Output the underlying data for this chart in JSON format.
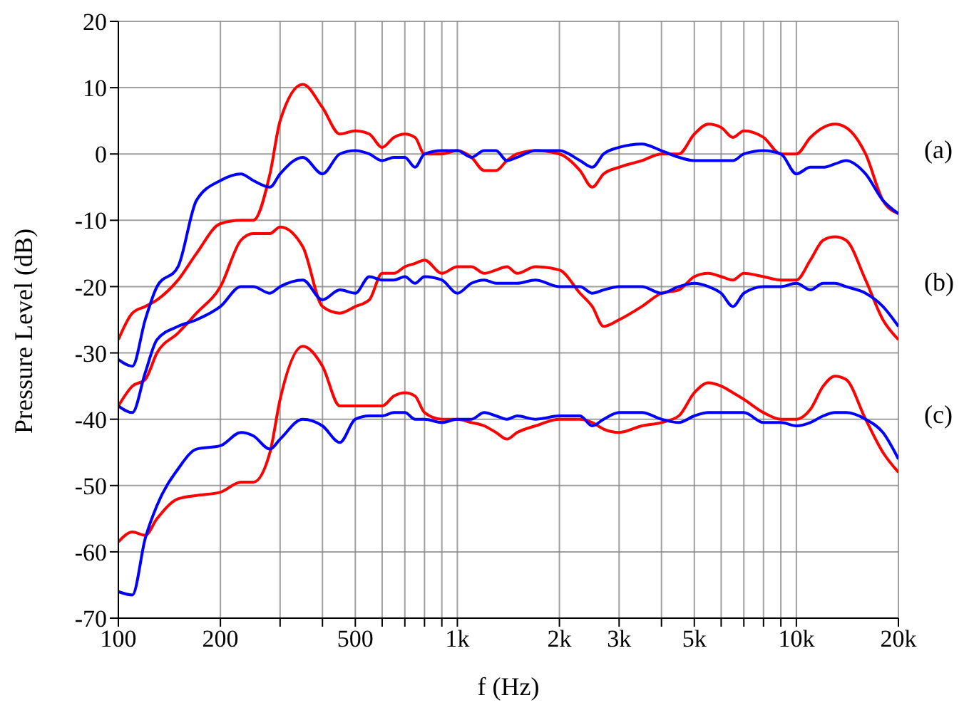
{
  "chart_data": {
    "type": "line",
    "xlabel": "f (Hz)",
    "ylabel": "Pressure Level (dB)",
    "log": "x",
    "grid": true,
    "legend": false,
    "marker": "none",
    "line_style": "solid",
    "x": [
      100,
      110,
      120,
      130,
      150,
      170,
      200,
      230,
      250,
      280,
      300,
      350,
      400,
      450,
      500,
      550,
      600,
      650,
      700,
      750,
      800,
      900,
      1000,
      1100,
      1200,
      1300,
      1400,
      1500,
      1700,
      2000,
      2300,
      2500,
      2700,
      3000,
      3500,
      4000,
      4500,
      5000,
      5500,
      6000,
      6500,
      7000,
      8000,
      9000,
      10000,
      11000,
      12000,
      13000,
      14000,
      16000,
      18000,
      20000
    ],
    "xlim": [
      100,
      20000
    ],
    "xticks": [
      100,
      200,
      {
        "value": 300,
        "label": null
      },
      {
        "value": 400,
        "label": null
      },
      500,
      {
        "value": 600,
        "label": null
      },
      {
        "value": 700,
        "label": null
      },
      {
        "value": 800,
        "label": null
      },
      {
        "value": 900,
        "label": null
      },
      {
        "value": 1000,
        "label": "1k"
      },
      {
        "value": 2000,
        "label": "2k"
      },
      {
        "value": 3000,
        "label": "3k"
      },
      {
        "value": 4000,
        "label": null
      },
      {
        "value": 5000,
        "label": "5k"
      },
      {
        "value": 6000,
        "label": null
      },
      {
        "value": 7000,
        "label": null
      },
      {
        "value": 8000,
        "label": null
      },
      {
        "value": 9000,
        "label": null
      },
      {
        "value": 10000,
        "label": "10k"
      },
      {
        "value": 20000,
        "label": "20k"
      }
    ],
    "ylim": [
      -70,
      20
    ],
    "yticks": [
      -70,
      -60,
      -50,
      -40,
      -30,
      -20,
      -10,
      0,
      10,
      20
    ],
    "series": [
      {
        "color": "#ff0000",
        "values": [
          -28,
          -24,
          -23,
          -22,
          -19,
          -15,
          -10.5,
          -10,
          -10,
          -3,
          5,
          10.5,
          7,
          3,
          3.5,
          3,
          1,
          2.5,
          3,
          2.5,
          0,
          0,
          0.5,
          -0.5,
          -2.5,
          -2.5,
          -1,
          0,
          0.5,
          0,
          -2.5,
          -5,
          -3,
          -2,
          -1,
          0,
          0,
          3,
          4.5,
          4,
          2.5,
          3.5,
          2.5,
          0,
          0,
          2.5,
          4,
          4.5,
          4,
          0,
          -7,
          -9
        ]
      },
      {
        "color": "#0000ff",
        "values": [
          -31,
          -32,
          -25,
          -20,
          -17,
          -7,
          -4,
          -3,
          -4,
          -5,
          -3,
          -0.5,
          -3,
          0,
          0.5,
          0,
          -1,
          -0.5,
          -0.5,
          -2,
          0,
          0.5,
          0.5,
          -0.5,
          0.5,
          0.5,
          -1,
          -0.5,
          0.5,
          0.5,
          -1,
          -2,
          0,
          1,
          1.5,
          0.5,
          -0.5,
          -1,
          -1,
          -1,
          -1,
          0,
          0.5,
          0,
          -3,
          -2,
          -2,
          -1.5,
          -1,
          -3,
          -7,
          -9
        ]
      },
      {
        "color": "#ff0000",
        "values": [
          -38,
          -35,
          -34,
          -30,
          -27,
          -24,
          -20,
          -13,
          -12,
          -12,
          -11,
          -14,
          -23,
          -24,
          -23,
          -22,
          -18,
          -18,
          -17,
          -16.5,
          -16,
          -18,
          -17,
          -17,
          -18,
          -17.5,
          -17,
          -18,
          -17,
          -17.5,
          -21,
          -23,
          -26,
          -25,
          -23,
          -21,
          -20.5,
          -18.5,
          -18,
          -18.5,
          -19,
          -18,
          -18.5,
          -19,
          -19,
          -16,
          -13,
          -12.5,
          -13,
          -19,
          -25,
          -28
        ]
      },
      {
        "color": "#0000ff",
        "values": [
          -38,
          -39,
          -33,
          -28,
          -26,
          -25,
          -23,
          -20,
          -20,
          -21,
          -20,
          -19,
          -22,
          -20.5,
          -21,
          -18.5,
          -19,
          -19,
          -18.5,
          -19.5,
          -18.5,
          -19,
          -21,
          -19.5,
          -19,
          -19.5,
          -19.5,
          -19.5,
          -19,
          -20,
          -20,
          -21,
          -20.5,
          -20,
          -20,
          -21,
          -20,
          -19.5,
          -20,
          -21,
          -23,
          -21,
          -20,
          -20,
          -19.5,
          -20.5,
          -19.5,
          -19.5,
          -20,
          -21,
          -23,
          -26
        ]
      },
      {
        "color": "#ff0000",
        "values": [
          -58.5,
          -57,
          -57.5,
          -55,
          -52,
          -51.5,
          -51,
          -49.5,
          -49.5,
          -45,
          -37,
          -29,
          -32,
          -38,
          -38,
          -38,
          -38,
          -36.5,
          -36,
          -36.5,
          -39,
          -40,
          -40,
          -40.5,
          -41,
          -42,
          -43,
          -42,
          -41,
          -40,
          -40,
          -40.5,
          -41.5,
          -42,
          -41,
          -40.5,
          -39.5,
          -36,
          -34.5,
          -35,
          -36,
          -37,
          -39,
          -40,
          -40,
          -38.5,
          -35,
          -33.5,
          -34,
          -40,
          -45,
          -48
        ]
      },
      {
        "color": "#0000ff",
        "values": [
          -66,
          -66.5,
          -58,
          -53,
          -47.5,
          -44.5,
          -44,
          -42,
          -42.5,
          -44.5,
          -43,
          -40,
          -41,
          -43.5,
          -40,
          -39.5,
          -39.5,
          -39,
          -39,
          -40,
          -40,
          -40.5,
          -40,
          -40,
          -39,
          -39.5,
          -40,
          -39.5,
          -40,
          -39.5,
          -39.5,
          -41,
          -40,
          -39,
          -39,
          -40,
          -40.5,
          -39.5,
          -39,
          -39,
          -39,
          -39,
          -40.5,
          -40.5,
          -41,
          -40.5,
          -39.5,
          -39,
          -39,
          -40,
          -42,
          -46
        ]
      }
    ],
    "annotations": [
      "(a)",
      "(b)",
      "(c)"
    ]
  }
}
